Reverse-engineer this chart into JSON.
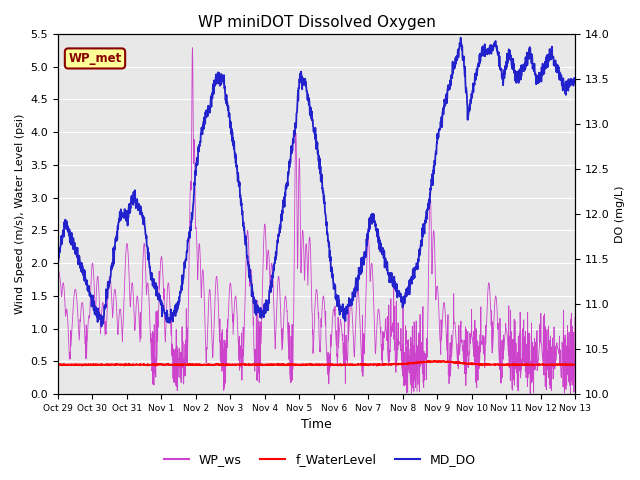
{
  "title": "WP miniDOT Dissolved Oxygen",
  "xlabel": "Time",
  "ylabel_left": "Wind Speed (m/s), Water Level (psi)",
  "ylabel_right": "DO (mg/L)",
  "ylim_left": [
    0.0,
    5.5
  ],
  "ylim_right": [
    10.0,
    14.0
  ],
  "yticks_left": [
    0.0,
    0.5,
    1.0,
    1.5,
    2.0,
    2.5,
    3.0,
    3.5,
    4.0,
    4.5,
    5.0,
    5.5
  ],
  "yticks_right": [
    10.0,
    10.5,
    11.0,
    11.5,
    12.0,
    12.5,
    13.0,
    13.5,
    14.0
  ],
  "xtick_labels": [
    "Oct 29",
    "Oct 30",
    "Oct 31",
    "Nov 1",
    "Nov 2",
    "Nov 3",
    "Nov 4",
    "Nov 5",
    "Nov 6",
    "Nov 7",
    "Nov 8",
    "Nov 9",
    "Nov 10",
    "Nov 11",
    "Nov 12",
    "Nov 13"
  ],
  "xtick_positions": [
    0,
    1,
    2,
    3,
    4,
    5,
    6,
    7,
    8,
    9,
    10,
    11,
    12,
    13,
    14,
    15
  ],
  "color_ws": "#CC44CC",
  "color_wl": "#FF0000",
  "color_do": "#2222CC",
  "legend_labels": [
    "WP_ws",
    "f_WaterLevel",
    "MD_DO"
  ],
  "legend_colors": [
    "#CC44CC",
    "#FF0000",
    "#2222CC"
  ],
  "tag_text": "WP_met",
  "tag_facecolor": "#FFFF99",
  "tag_edgecolor": "#8B0000",
  "tag_textcolor": "#8B0000",
  "bg_color": "#E8E8E8",
  "grid_color": "#FFFFFF",
  "seed": 12345,
  "n_pts": 2000
}
